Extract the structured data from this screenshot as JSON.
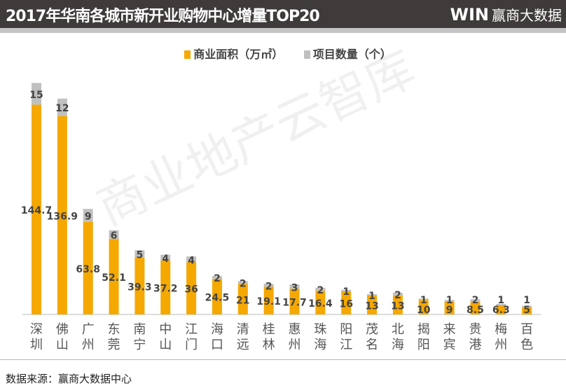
{
  "header": {
    "title": "2017年华南各城市新开业购物中心增量TOP20",
    "brand_logo": "WIN",
    "brand_name": "赢商大数据"
  },
  "watermark": "商业地产云智库",
  "footer": {
    "source": "数据来源：赢商大数据中心"
  },
  "colors": {
    "area": "#f5a800",
    "count": "#c0c0c0",
    "header": "#3f3b3a"
  },
  "chart_data": {
    "type": "bar",
    "stacked": true,
    "title": "2017年华南各城市新开业购物中心增量TOP20",
    "legend_position": "top",
    "grid": false,
    "categories": [
      "深圳",
      "佛山",
      "广州",
      "东莞",
      "南宁",
      "中山",
      "江门",
      "海口",
      "清远",
      "桂林",
      "惠州",
      "珠海",
      "阳江",
      "茂名",
      "北海",
      "揭阳",
      "来宾",
      "贵港",
      "梅州",
      "百色"
    ],
    "series": [
      {
        "name": "商业面积（万㎡）",
        "color": "#f5a800",
        "values": [
          144.7,
          136.9,
          63.8,
          52.1,
          39.3,
          37.2,
          36,
          24.5,
          21,
          19.1,
          17.7,
          16.4,
          16,
          13,
          13,
          10,
          9,
          8.5,
          6.3,
          5
        ]
      },
      {
        "name": "项目数量（个）",
        "color": "#c0c0c0",
        "values": [
          15,
          12,
          9,
          6,
          5,
          4,
          4,
          2,
          2,
          2,
          3,
          2,
          1,
          1,
          2,
          1,
          1,
          2,
          1,
          1
        ]
      }
    ]
  }
}
